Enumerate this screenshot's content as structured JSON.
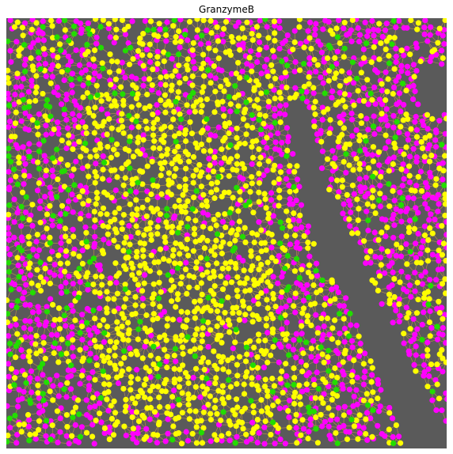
{
  "figure": {
    "title": "GranzymeB"
  },
  "colors": {
    "background_tissue": "#5a5a5a",
    "edge_lines": "#d9a441",
    "cell_yellow": "#ffff00",
    "cell_magenta": "#ff00ff",
    "cell_green": "#22dd00"
  },
  "image": {
    "description_type": "spatial-cell-graph",
    "visible_cell_colors": [
      "yellow",
      "magenta",
      "green"
    ]
  }
}
